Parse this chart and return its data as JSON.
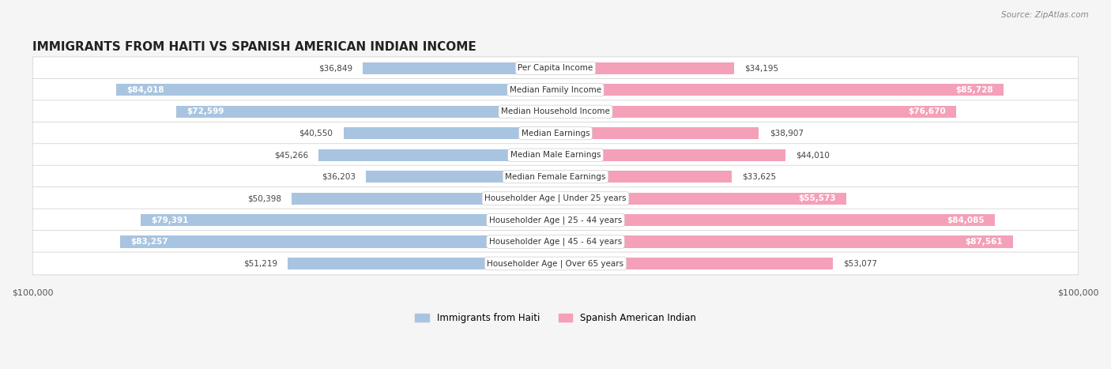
{
  "title": "IMMIGRANTS FROM HAITI VS SPANISH AMERICAN INDIAN INCOME",
  "source": "Source: ZipAtlas.com",
  "categories": [
    "Per Capita Income",
    "Median Family Income",
    "Median Household Income",
    "Median Earnings",
    "Median Male Earnings",
    "Median Female Earnings",
    "Householder Age | Under 25 years",
    "Householder Age | 25 - 44 years",
    "Householder Age | 45 - 64 years",
    "Householder Age | Over 65 years"
  ],
  "haiti_values": [
    36849,
    84018,
    72599,
    40550,
    45266,
    36203,
    50398,
    79391,
    83257,
    51219
  ],
  "spanish_values": [
    34195,
    85728,
    76670,
    38907,
    44010,
    33625,
    55573,
    84085,
    87561,
    53077
  ],
  "haiti_labels": [
    "$36,849",
    "$84,018",
    "$72,599",
    "$40,550",
    "$45,266",
    "$36,203",
    "$50,398",
    "$79,391",
    "$83,257",
    "$51,219"
  ],
  "spanish_labels": [
    "$34,195",
    "$85,728",
    "$76,670",
    "$38,907",
    "$44,010",
    "$33,625",
    "$55,573",
    "$84,085",
    "$87,561",
    "$53,077"
  ],
  "haiti_color": "#a8c4e0",
  "haiti_color_dark": "#7bafd4",
  "spanish_color": "#f4a0b8",
  "spanish_color_dark": "#f07090",
  "max_value": 100000,
  "background_color": "#f5f5f5",
  "row_bg_color": "#ffffff",
  "label_color_light": "#333333",
  "label_color_white": "#ffffff"
}
